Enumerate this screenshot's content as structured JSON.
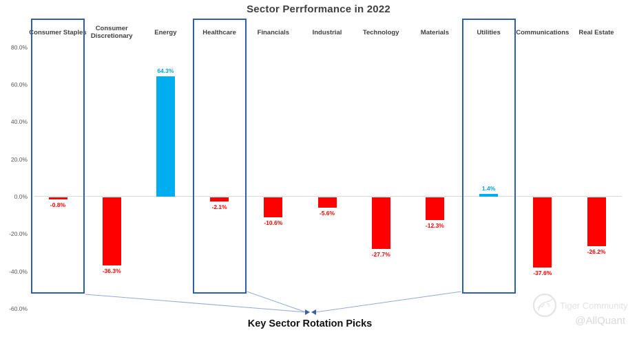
{
  "title": "Sector Perrformance in 2022",
  "annotation": {
    "label": "Key Sector Rotation Picks"
  },
  "watermark": {
    "brand": "Tiger Community",
    "handle": "@AllQuant"
  },
  "colors": {
    "positive_bar": "#00aeef",
    "negative_bar": "#ff0000",
    "highlight_box": "#2e5ea6",
    "arrow_line": "#92a9d4",
    "arrow_head": "#3b5fa0",
    "zero_gridline": "#d9d9d9",
    "title_text": "#3f3f3f",
    "axis_text": "#595959"
  },
  "chart_data": {
    "type": "bar",
    "title": "Sector Perrformance in 2022",
    "categories": [
      "Consumer Staples",
      "Consumer Discretionary",
      "Energy",
      "Healthcare",
      "Financials",
      "Industrial",
      "Technology",
      "Materials",
      "Utilities",
      "Communications",
      "Real Estate"
    ],
    "values": [
      -0.8,
      -36.3,
      64.3,
      -2.1,
      -10.6,
      -5.6,
      -27.7,
      -12.3,
      1.4,
      -37.6,
      -26.2
    ],
    "value_labels": [
      "-0.8%",
      "-36.3%",
      "64.3%",
      "-2.1%",
      "-10.6%",
      "-5.6%",
      "-27.7%",
      "-12.3%",
      "1.4%",
      "-37.6%",
      "-26.2%"
    ],
    "xlabel": "",
    "ylabel": "",
    "y_ticks": [
      "80.0%",
      "60.0%",
      "40.0%",
      "20.0%",
      "0.0%",
      "-20.0%",
      "-40.0%",
      "-60.0%"
    ],
    "y_tick_values": [
      80,
      60,
      40,
      20,
      0,
      -20,
      -40,
      -60
    ],
    "ylim": [
      -60,
      90
    ],
    "grid": "zero-line-only",
    "legend": "none",
    "highlighted_categories": [
      "Consumer Staples",
      "Healthcare",
      "Utilities"
    ],
    "highlight_indices": [
      0,
      3,
      8
    ]
  }
}
